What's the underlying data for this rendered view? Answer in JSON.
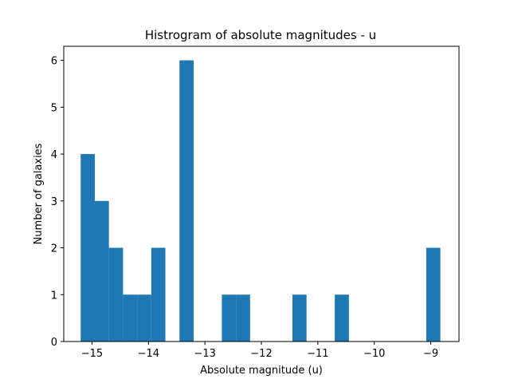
{
  "chart_data": {
    "type": "bar",
    "title": "Histrogram of absolute magnitudes - u",
    "xlabel": "Absolute magnitude (u)",
    "ylabel": "Number of galaxies",
    "xlim": [
      -15.5,
      -8.5
    ],
    "ylim": [
      0,
      6.3
    ],
    "bar_color": "#1f77b4",
    "xticks": [
      -15,
      -14,
      -13,
      -12,
      -11,
      -10,
      -9
    ],
    "xtick_labels": [
      "−15",
      "−14",
      "−13",
      "−12",
      "−11",
      "−10",
      "−9"
    ],
    "yticks": [
      0,
      1,
      2,
      3,
      4,
      5,
      6
    ],
    "ytick_labels": [
      "0",
      "1",
      "2",
      "3",
      "4",
      "5",
      "6"
    ],
    "bins": [
      {
        "x0": -15.2,
        "x1": -14.95,
        "count": 4
      },
      {
        "x0": -14.95,
        "x1": -14.7,
        "count": 3
      },
      {
        "x0": -14.7,
        "x1": -14.45,
        "count": 2
      },
      {
        "x0": -14.45,
        "x1": -14.2,
        "count": 1
      },
      {
        "x0": -14.2,
        "x1": -13.95,
        "count": 1
      },
      {
        "x0": -13.95,
        "x1": -13.7,
        "count": 2
      },
      {
        "x0": -13.45,
        "x1": -13.2,
        "count": 6
      },
      {
        "x0": -12.7,
        "x1": -12.45,
        "count": 1
      },
      {
        "x0": -12.45,
        "x1": -12.2,
        "count": 1
      },
      {
        "x0": -11.45,
        "x1": -11.2,
        "count": 1
      },
      {
        "x0": -10.7,
        "x1": -10.45,
        "count": 1
      },
      {
        "x0": -9.08,
        "x1": -8.83,
        "count": 2
      }
    ],
    "grid": false,
    "legend": "none"
  }
}
